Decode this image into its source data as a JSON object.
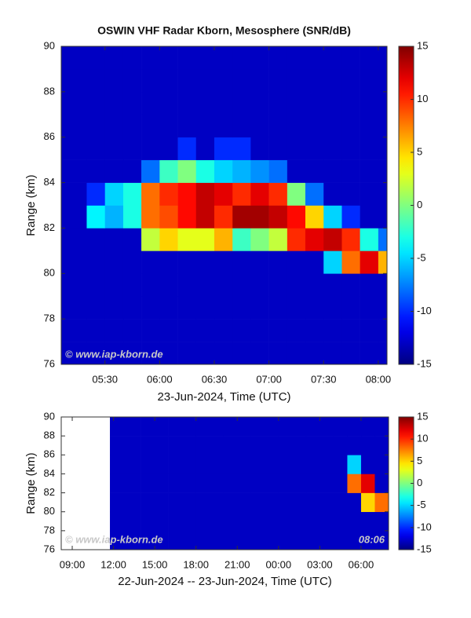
{
  "chart_data": [
    {
      "type": "heatmap",
      "title": "OSWIN VHF Radar Kborn, Mesosphere (SNR/dB)",
      "x_label": "23-Jun-2024, Time (UTC)",
      "y_label": "Range (km)",
      "watermark": "© www.iap-kborn.de",
      "colormap": "jet",
      "clim": [
        -15,
        15
      ],
      "cticks": [
        -15,
        -10,
        -5,
        0,
        5,
        10,
        15
      ],
      "xlim": [
        5.1,
        8.08
      ],
      "ylim": [
        76,
        90
      ],
      "xticks": [
        {
          "value": 5.5,
          "label": "05:30"
        },
        {
          "value": 6,
          "label": "06:00"
        },
        {
          "value": 6.5,
          "label": "06:30"
        },
        {
          "value": 7,
          "label": "07:00"
        },
        {
          "value": 7.5,
          "label": "07:30"
        },
        {
          "value": 8,
          "label": "08:00"
        }
      ],
      "yticks": [
        76,
        78,
        80,
        82,
        84,
        86,
        88,
        90
      ],
      "x_edges": [
        5.1,
        5.333,
        5.5,
        5.667,
        5.833,
        6,
        6.167,
        6.333,
        6.5,
        6.667,
        6.833,
        7,
        7.167,
        7.333,
        7.5,
        7.667,
        7.833,
        8,
        8.08
      ],
      "y_edges": [
        76,
        77,
        78,
        79,
        80,
        81,
        82,
        83,
        84,
        85,
        86,
        87,
        88,
        89,
        90
      ],
      "z": [
        [
          -13,
          -13,
          -13,
          -13,
          -13,
          -13,
          -13,
          -13,
          -13,
          -13,
          -13,
          -13,
          -13,
          -13,
          -13,
          -13,
          -13,
          -13
        ],
        [
          -13,
          -13,
          -13,
          -13,
          -13,
          -13,
          -13,
          -13,
          -13,
          -13,
          -13,
          -13,
          -13,
          -13,
          -13,
          -13,
          -13,
          -13
        ],
        [
          -13,
          -13,
          -13,
          -13,
          -13,
          -13,
          -13,
          -13,
          -13,
          -13,
          -13,
          -13,
          -13,
          -13,
          -13,
          -13,
          -13,
          -13
        ],
        [
          -13,
          -13,
          -13,
          -13,
          -13,
          -13,
          -13,
          -13,
          -13,
          -13,
          -13,
          -13,
          -13,
          -13,
          -13,
          -13,
          -13,
          -13
        ],
        [
          -13,
          -13,
          -13,
          -13,
          -13,
          -13,
          -13,
          -13,
          -13,
          -13,
          -13,
          -13,
          -13,
          -13,
          -5,
          8,
          12,
          6
        ],
        [
          -13,
          -13,
          -13,
          -13,
          2,
          5,
          3,
          3,
          6,
          -2,
          0,
          2,
          10,
          12,
          13,
          10,
          -3,
          -8
        ],
        [
          -13,
          -4,
          -6,
          -3,
          8,
          9,
          11,
          13,
          10,
          14,
          14,
          13,
          11,
          5,
          -5,
          -10,
          -13,
          -13
        ],
        [
          -13,
          -10,
          -5,
          -3,
          8,
          10,
          11,
          13,
          12,
          10,
          12,
          10,
          0,
          -8,
          -13,
          -13,
          -13,
          -13
        ],
        [
          -13,
          -13,
          -13,
          -13,
          -8,
          -2,
          0,
          -3,
          -5,
          -6,
          -7,
          -8,
          -13,
          -13,
          -13,
          -13,
          -13,
          -13
        ],
        [
          -13,
          -13,
          -13,
          -13,
          -13,
          -13,
          -10,
          -13,
          -10,
          -10,
          -13,
          -13,
          -13,
          -13,
          -13,
          -13,
          -13,
          -13
        ],
        [
          -13,
          -13,
          -13,
          -13,
          -13,
          -13,
          -13,
          -13,
          -13,
          -13,
          -13,
          -13,
          -13,
          -13,
          -13,
          -13,
          -13,
          -13
        ],
        [
          -13,
          -13,
          -13,
          -13,
          -13,
          -13,
          -13,
          -13,
          -13,
          -13,
          -13,
          -13,
          -13,
          -13,
          -13,
          -13,
          -13,
          -13
        ],
        [
          -13,
          -13,
          -13,
          -13,
          -13,
          -13,
          -13,
          -13,
          -13,
          -13,
          -13,
          -13,
          -13,
          -13,
          -13,
          -13,
          -13,
          -13
        ],
        [
          -13,
          -13,
          -13,
          -13,
          -13,
          -13,
          -13,
          -13,
          -13,
          -13,
          -13,
          -13,
          -13,
          -13,
          -13,
          -13,
          -13,
          -13
        ]
      ]
    },
    {
      "type": "heatmap",
      "x_label": "22-Jun-2024 -- 23-Jun-2024, Time (UTC)",
      "y_label": "Range (km)",
      "watermark": "© www.iap-kborn.de",
      "time_stamp": "08:06",
      "colormap": "jet",
      "clim": [
        -15,
        15
      ],
      "cticks": [
        -15,
        -10,
        -5,
        0,
        5,
        10,
        15
      ],
      "xlim": [
        8.2,
        32
      ],
      "ylim": [
        76,
        90
      ],
      "xticks": [
        {
          "value": 9,
          "label": "09:00"
        },
        {
          "value": 12,
          "label": "12:00"
        },
        {
          "value": 15,
          "label": "15:00"
        },
        {
          "value": 18,
          "label": "18:00"
        },
        {
          "value": 21,
          "label": "21:00"
        },
        {
          "value": 24,
          "label": "00:00"
        },
        {
          "value": 27,
          "label": "03:00"
        },
        {
          "value": 30,
          "label": "06:00"
        }
      ],
      "yticks": [
        76,
        78,
        80,
        82,
        84,
        86,
        88,
        90
      ],
      "x_edges": [
        11.74,
        14,
        16,
        18,
        20,
        22,
        24,
        26,
        28,
        29,
        30,
        31,
        32
      ],
      "y_edges": [
        76,
        78,
        80,
        82,
        84,
        86,
        88,
        90
      ],
      "z": [
        [
          -13,
          -13,
          -13,
          -13,
          -13,
          -13,
          -13,
          -13,
          -13,
          -13,
          -13,
          -13
        ],
        [
          -13,
          -13,
          -13,
          -13,
          -13,
          -13,
          -13,
          -13,
          -13,
          -13,
          -13,
          -13
        ],
        [
          -13,
          -13,
          -13,
          -13,
          -13,
          -13,
          -13,
          -13,
          -13,
          -13,
          5,
          8
        ],
        [
          -13,
          -13,
          -13,
          -13,
          -13,
          -13,
          -13,
          -13,
          -13,
          8,
          12,
          -13
        ],
        [
          -13,
          -13,
          -13,
          -13,
          -13,
          -13,
          -13,
          -13,
          -13,
          -5,
          -13,
          -13
        ],
        [
          -13,
          -13,
          -13,
          -13,
          -13,
          -13,
          -13,
          -13,
          -13,
          -13,
          -13,
          -13
        ],
        [
          -13,
          -13,
          -13,
          -13,
          -13,
          -13,
          -13,
          -13,
          -13,
          -13,
          -13,
          -13
        ]
      ]
    }
  ]
}
